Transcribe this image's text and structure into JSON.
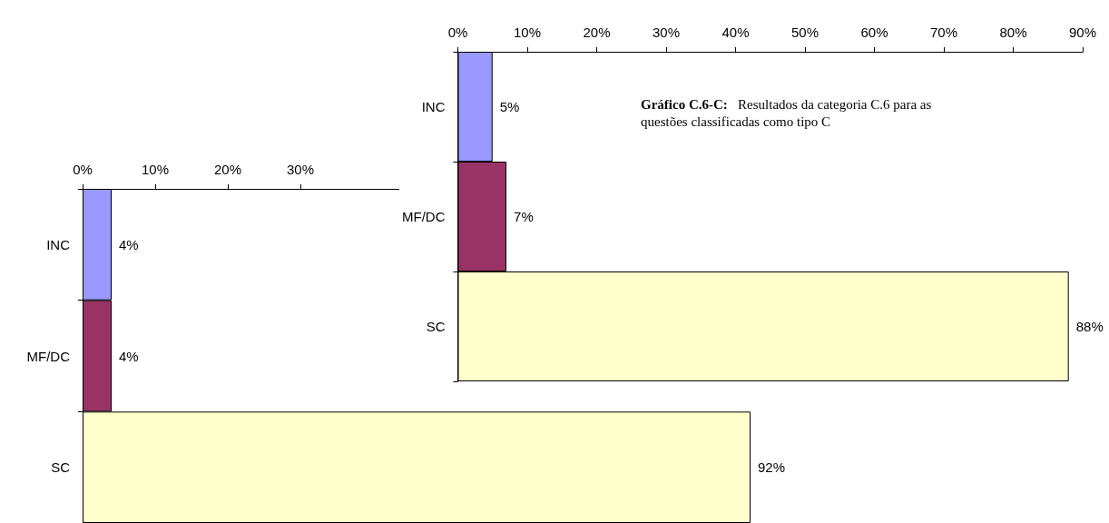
{
  "chart_data": [
    {
      "type": "bar",
      "orientation": "horizontal",
      "categories": [
        "INC",
        "MF/DC",
        "SC"
      ],
      "values": [
        5,
        7,
        88
      ],
      "colors": [
        "#9999ff",
        "#993366",
        "#ffffcc"
      ],
      "value_labels": [
        "5%",
        "7%",
        "88%"
      ],
      "xlim": [
        0,
        90
      ],
      "xticks": [
        {
          "value": 0,
          "label": "0%"
        },
        {
          "value": 10,
          "label": "10%"
        },
        {
          "value": 20,
          "label": "20%"
        },
        {
          "value": 30,
          "label": "30%"
        },
        {
          "value": 40,
          "label": "40%"
        },
        {
          "value": 50,
          "label": "50%"
        },
        {
          "value": 60,
          "label": "60%"
        },
        {
          "value": 70,
          "label": "70%"
        },
        {
          "value": 80,
          "label": "80%"
        },
        {
          "value": 90,
          "label": "90%"
        }
      ],
      "grid": false,
      "annotations": [
        "Gráfico C.6-C: Resultados da categoria C.6 para as questões classificadas como tipo C"
      ]
    },
    {
      "type": "bar",
      "orientation": "horizontal",
      "categories": [
        "INC",
        "MF/DC",
        "SC"
      ],
      "values": [
        4,
        4,
        92
      ],
      "colors": [
        "#9999ff",
        "#993366",
        "#ffffcc"
      ],
      "value_labels": [
        "4%",
        "4%",
        "92%"
      ],
      "xlim": [
        0,
        100
      ],
      "xticks": [
        {
          "value": 0,
          "label": "0%"
        },
        {
          "value": 10,
          "label": "10%"
        },
        {
          "value": 20,
          "label": "20%"
        },
        {
          "value": 30,
          "label": "30%"
        }
      ],
      "grid": false
    }
  ]
}
